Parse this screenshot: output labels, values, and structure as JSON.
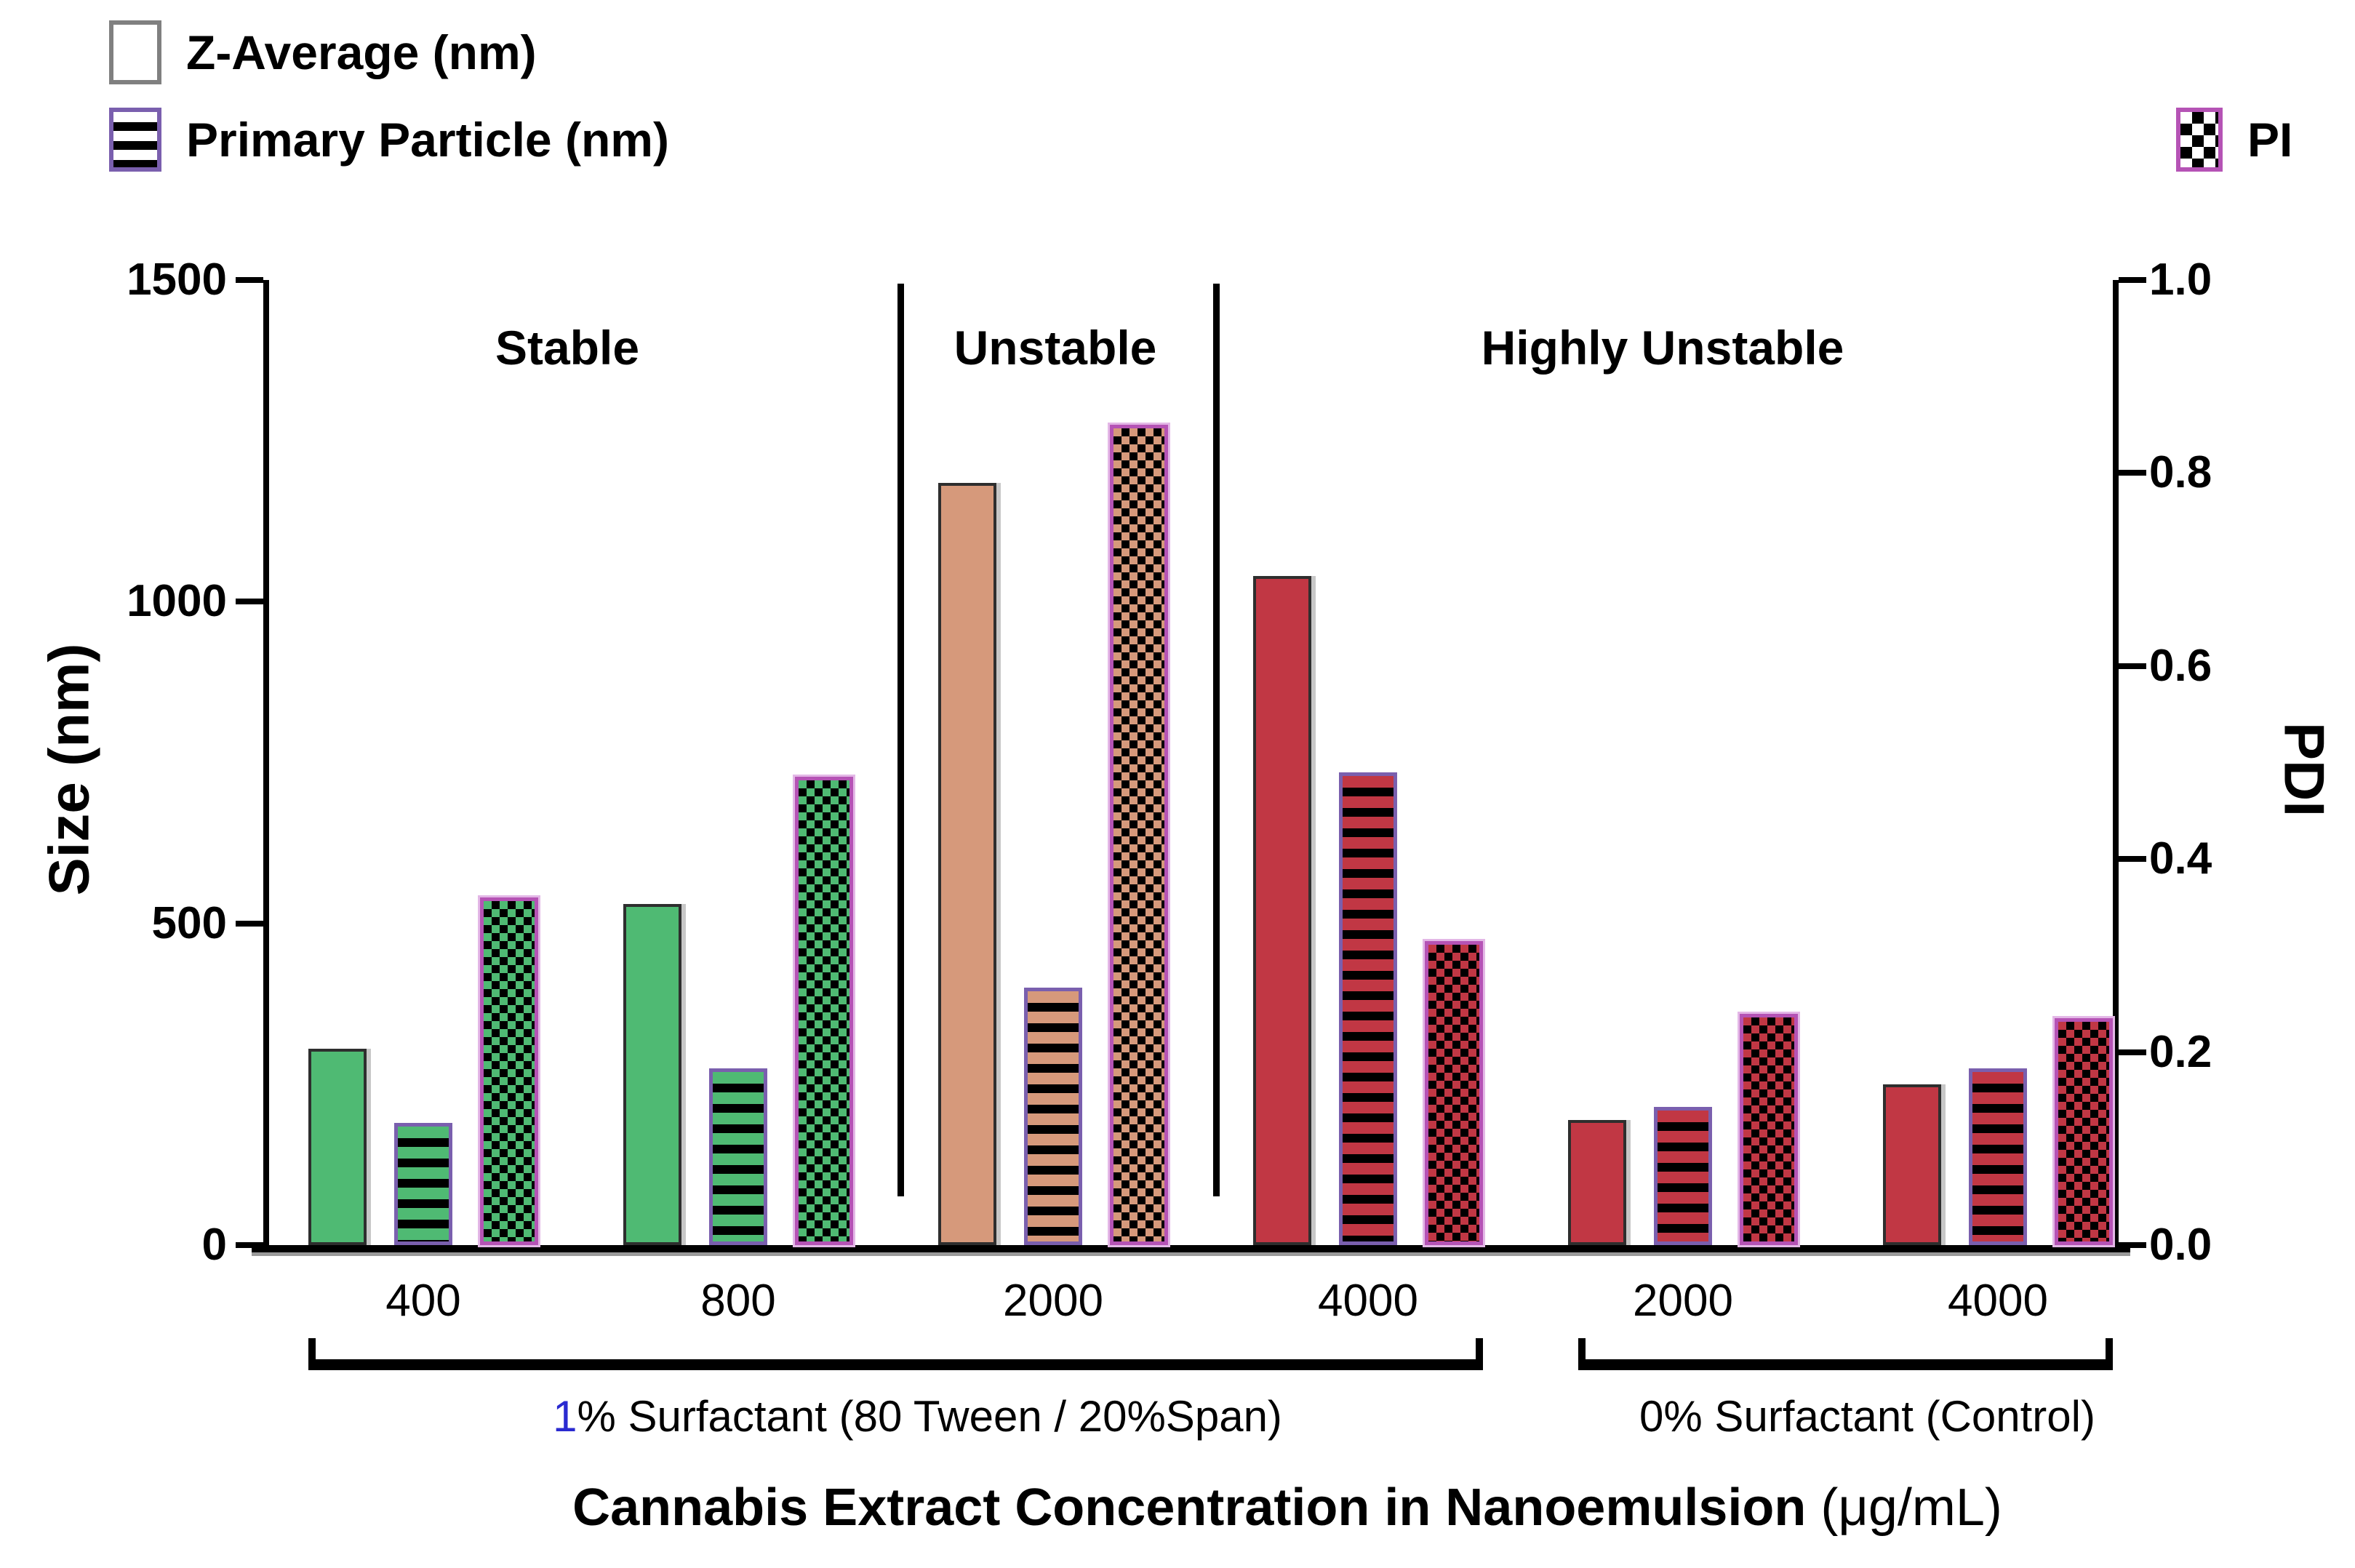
{
  "legend": {
    "z_average": "Z-Average (nm)",
    "primary_particle": "Primary Particle (nm)",
    "pi": "PI"
  },
  "y_left": {
    "label": "Size (nm)",
    "ticks": [
      "1500",
      "1000",
      "500",
      "0"
    ],
    "max": 1500
  },
  "y_right": {
    "label": "PDI",
    "ticks": [
      "1.0",
      "0.8",
      "0.6",
      "0.4",
      "0.2",
      "0.0"
    ],
    "max": 1.0
  },
  "x_axis": {
    "title": "Cannabis Extract Concentration in Nanoemulsion",
    "title_unit": " (μg/mL)"
  },
  "regions": [
    {
      "label": "Stable"
    },
    {
      "label": "Unstable"
    },
    {
      "label": "Highly Unstable"
    }
  ],
  "brackets": [
    {
      "label": "1% Surfactant (80 Tween / 20%Span)",
      "first_char_color": "#2a2ad0"
    },
    {
      "label": "0% Surfactant (Control)",
      "first_char_color": "#000000"
    }
  ],
  "colors": {
    "stable_green": "#4fba73",
    "unstable_salmon": "#d6997b",
    "highly_unstable_red": "#c13744",
    "striped_border_purple": "#7a5fae",
    "checkered_border_magenta": "#b553b5",
    "legend_plain_border_gray": "#808080"
  },
  "chart_data": {
    "type": "bar",
    "title": "",
    "xlabel": "Cannabis Extract Concentration in Nanoemulsion (μg/mL)",
    "ylabel_left": "Size (nm)",
    "ylabel_right": "PDI",
    "ylim_left": [
      0,
      1500
    ],
    "ylim_right": [
      0.0,
      1.0
    ],
    "grid": false,
    "legend_position": "top-left and top-right",
    "categories": [
      "400",
      "800",
      "2000",
      "4000",
      "2000",
      "4000"
    ],
    "group_colors": [
      "#4fba73",
      "#4fba73",
      "#d6997b",
      "#c13744",
      "#c13744",
      "#c13744"
    ],
    "series": [
      {
        "name": "Z-Average (nm)",
        "axis": "left",
        "pattern": "solid",
        "values": [
          305,
          530,
          1185,
          1040,
          195,
          250
        ]
      },
      {
        "name": "Primary Particle (nm)",
        "axis": "left",
        "pattern": "horizontal-stripes",
        "values": [
          190,
          275,
          400,
          735,
          215,
          275
        ]
      },
      {
        "name": "PI",
        "axis": "right",
        "pattern": "checkerboard",
        "values": [
          0.36,
          0.485,
          0.85,
          0.315,
          0.24,
          0.235
        ]
      }
    ],
    "stability_regions": [
      {
        "label": "Stable",
        "category_indexes": [
          0,
          1
        ]
      },
      {
        "label": "Unstable",
        "category_indexes": [
          2
        ]
      },
      {
        "label": "Highly Unstable",
        "category_indexes": [
          3,
          4,
          5
        ]
      }
    ],
    "x_group_brackets": [
      {
        "label": "1% Surfactant (80 Tween / 20%Span)",
        "categories": [
          "400",
          "800",
          "2000",
          "4000"
        ]
      },
      {
        "label": "0% Surfactant (Control)",
        "categories": [
          "2000",
          "4000"
        ]
      }
    ]
  }
}
